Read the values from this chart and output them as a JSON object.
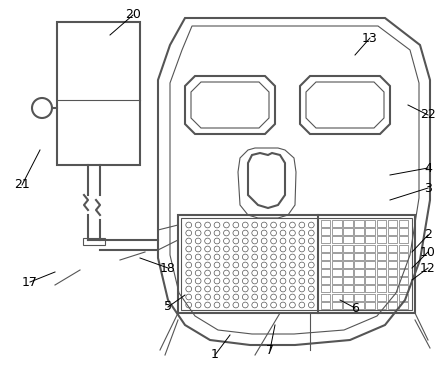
{
  "bg_color": "#ffffff",
  "lc": "#555555",
  "lw": 1.5,
  "tlw": 0.8,
  "fs": 9
}
